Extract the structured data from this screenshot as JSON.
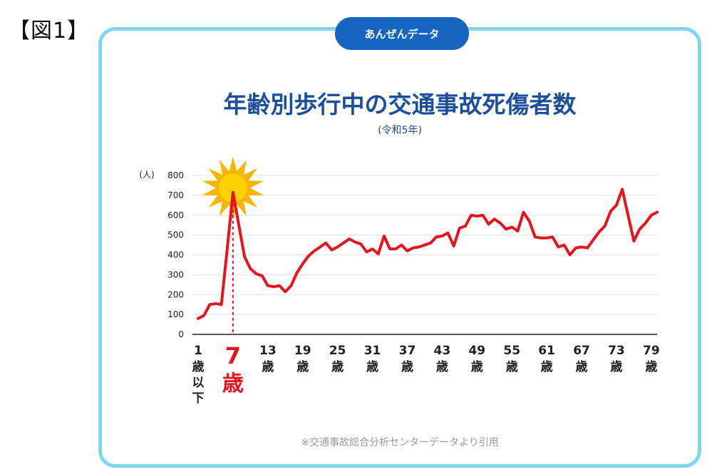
{
  "figure_label": "【図1】",
  "badge": "あんぜんデータ",
  "chart_data": {
    "type": "line",
    "title": "年齢別歩行中の交通事故死傷者数",
    "subtitle": "(令和5年)",
    "ylabel": "(人)",
    "ylim": [
      0,
      800
    ],
    "yticks": [
      0,
      100,
      200,
      300,
      400,
      500,
      600,
      700,
      800
    ],
    "xticks": [
      {
        "age": 1,
        "num": "1",
        "unit": "歳",
        "extra": [
          "以",
          "下"
        ]
      },
      {
        "age": 7,
        "num": "7",
        "unit": "歳",
        "highlight": true
      },
      {
        "age": 13,
        "num": "13",
        "unit": "歳"
      },
      {
        "age": 19,
        "num": "19",
        "unit": "歳"
      },
      {
        "age": 25,
        "num": "25",
        "unit": "歳"
      },
      {
        "age": 31,
        "num": "31",
        "unit": "歳"
      },
      {
        "age": 37,
        "num": "37",
        "unit": "歳"
      },
      {
        "age": 43,
        "num": "43",
        "unit": "歳"
      },
      {
        "age": 49,
        "num": "49",
        "unit": "歳"
      },
      {
        "age": 55,
        "num": "55",
        "unit": "歳"
      },
      {
        "age": 61,
        "num": "61",
        "unit": "歳"
      },
      {
        "age": 67,
        "num": "67",
        "unit": "歳"
      },
      {
        "age": 73,
        "num": "73",
        "unit": "歳"
      },
      {
        "age": 79,
        "num": "79",
        "unit": "歳"
      }
    ],
    "x": [
      1,
      2,
      3,
      4,
      5,
      6,
      7,
      8,
      9,
      10,
      11,
      12,
      13,
      14,
      15,
      16,
      17,
      18,
      19,
      20,
      21,
      22,
      23,
      24,
      25,
      26,
      27,
      28,
      29,
      30,
      31,
      32,
      33,
      34,
      35,
      36,
      37,
      38,
      39,
      40,
      41,
      42,
      43,
      44,
      45,
      46,
      47,
      48,
      49,
      50,
      51,
      52,
      53,
      54,
      55,
      56,
      57,
      58,
      59,
      60,
      61,
      62,
      63,
      64,
      65,
      66,
      67,
      68,
      69,
      70,
      71,
      72,
      73,
      74,
      75,
      76,
      77,
      78,
      79,
      80
    ],
    "series": [
      {
        "name": "死傷者数",
        "color": "#e5141f",
        "values": [
          80,
          95,
          150,
          155,
          150,
          430,
          715,
          550,
          390,
          330,
          305,
          295,
          245,
          240,
          245,
          215,
          245,
          310,
          355,
          395,
          420,
          440,
          460,
          425,
          440,
          460,
          480,
          465,
          455,
          415,
          430,
          405,
          495,
          430,
          430,
          450,
          420,
          435,
          440,
          450,
          460,
          490,
          495,
          510,
          445,
          535,
          545,
          600,
          595,
          600,
          555,
          580,
          560,
          530,
          540,
          520,
          615,
          570,
          490,
          485,
          485,
          490,
          440,
          450,
          400,
          435,
          440,
          435,
          475,
          515,
          545,
          620,
          650,
          730,
          600,
          470,
          530,
          560,
          600,
          615
        ]
      }
    ],
    "highlight": {
      "age": 7,
      "value": 715,
      "label": "7歳"
    }
  },
  "source_note": "※交通事故総合分析センターデータより引用"
}
